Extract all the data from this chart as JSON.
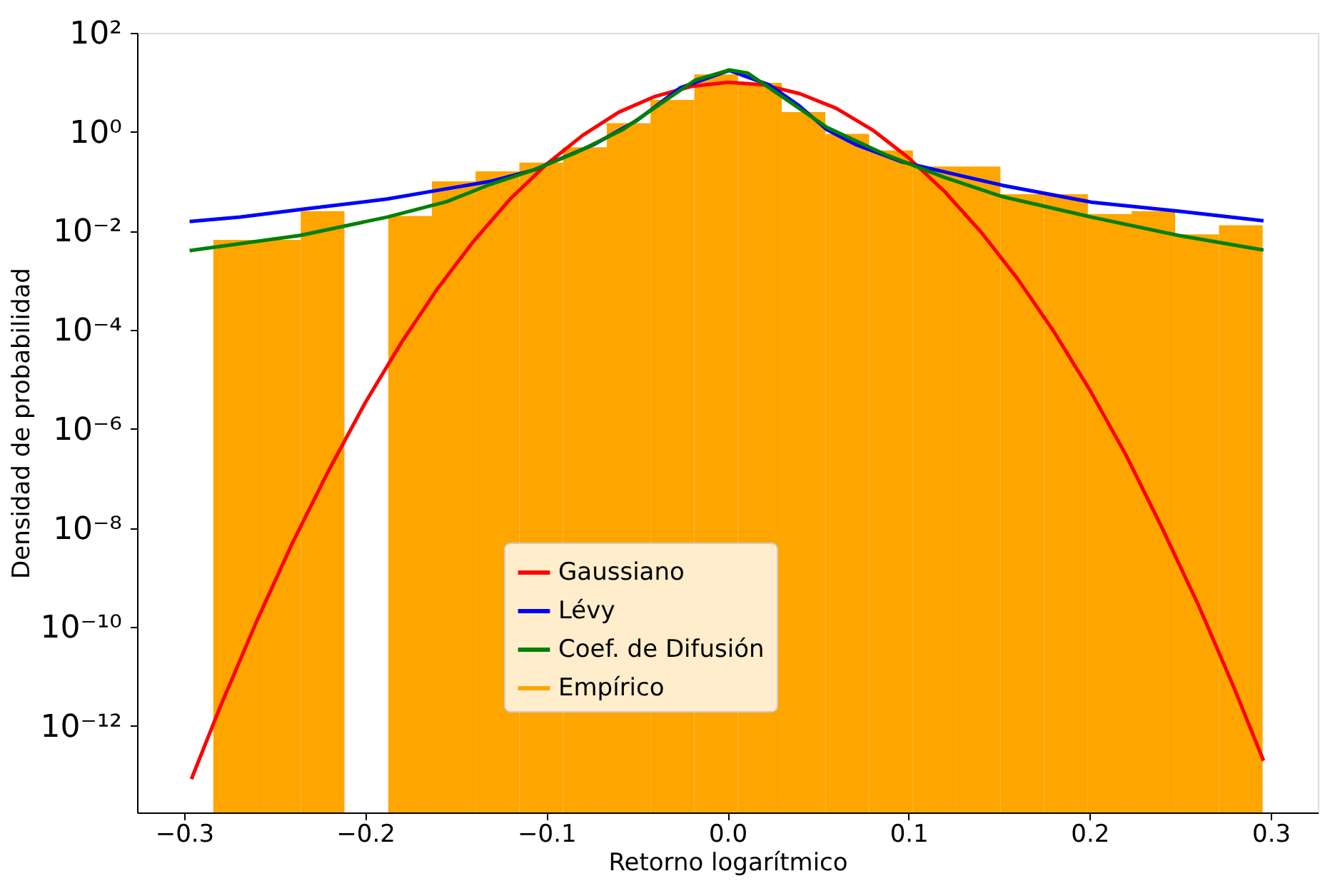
{
  "chart_data": {
    "type": "histogram",
    "xlabel": "Retorno logarítmico",
    "ylabel": "Densidad de probabilidad",
    "xlim": [
      -0.326,
      0.326
    ],
    "ylim": [
      1.8e-14,
      100
    ],
    "log": "y",
    "grid": false,
    "legend": "bottom",
    "xticks": [
      {
        "value": -0.3,
        "label": "−0.3"
      },
      {
        "value": -0.2,
        "label": "−0.2"
      },
      {
        "value": -0.1,
        "label": "−0.1"
      },
      {
        "value": 0,
        "label": "0.0"
      },
      {
        "value": 0.1,
        "label": "0.1"
      },
      {
        "value": 0.2,
        "label": "0.2"
      },
      {
        "value": 0.3,
        "label": "0.3"
      }
    ],
    "yticks": [
      {
        "value": 1e-12,
        "label": "10⁻¹²"
      },
      {
        "value": 1e-10,
        "label": "10⁻¹⁰"
      },
      {
        "value": 1e-08,
        "label": "10⁻⁸"
      },
      {
        "value": 1e-06,
        "label": "10⁻⁶"
      },
      {
        "value": 0.0001,
        "label": "10⁻⁴"
      },
      {
        "value": 0.01,
        "label": "10⁻²"
      },
      {
        "value": 1,
        "label": "10⁰"
      },
      {
        "value": 100,
        "label": "10²"
      }
    ],
    "series": [
      {
        "name": "Gaussiano",
        "type": "line",
        "color": "#ff0000",
        "x": [
          -0.296,
          -0.28,
          -0.26,
          -0.24,
          -0.22,
          -0.2,
          -0.18,
          -0.16,
          -0.14,
          -0.12,
          -0.1,
          -0.08,
          -0.06,
          -0.04,
          -0.02,
          0.0,
          0.02,
          0.04,
          0.06,
          0.08,
          0.1,
          0.12,
          0.14,
          0.16,
          0.18,
          0.2,
          0.22,
          0.24,
          0.26,
          0.28,
          0.296
        ],
        "values": [
          8.5e-14,
          2.5e-12,
          1.3e-10,
          5.2e-09,
          1.5e-07,
          3.4e-06,
          5.6e-05,
          0.00069,
          0.0063,
          0.044,
          0.22,
          0.85,
          2.5,
          5.2,
          8.3,
          10,
          8.9,
          5.9,
          3.0,
          1.1,
          0.3,
          0.062,
          0.0095,
          0.0011,
          9.5e-05,
          6.2e-06,
          3e-07,
          1e-08,
          2.8e-10,
          5.6e-12,
          2e-13
        ]
      },
      {
        "name": "Lévy",
        "type": "line",
        "color": "#0000ff",
        "x": [
          -0.297,
          -0.269,
          -0.236,
          -0.188,
          -0.155,
          -0.131,
          -0.107,
          -0.074,
          -0.05,
          -0.026,
          0.001,
          0.023,
          0.039,
          0.055,
          0.071,
          0.096,
          0.12,
          0.152,
          0.201,
          0.249,
          0.296
        ],
        "values": [
          0.0155,
          0.019,
          0.027,
          0.044,
          0.071,
          0.1,
          0.17,
          0.55,
          1.7,
          7.8,
          17.4,
          8.9,
          3.5,
          1.1,
          0.55,
          0.25,
          0.155,
          0.083,
          0.038,
          0.025,
          0.016
        ]
      },
      {
        "name": "Coef. de Difusión",
        "type": "line",
        "color": "#008000",
        "x": [
          -0.297,
          -0.236,
          -0.188,
          -0.155,
          -0.131,
          -0.107,
          -0.083,
          -0.058,
          -0.034,
          -0.018,
          0.001,
          0.011,
          0.023,
          0.039,
          0.055,
          0.087,
          0.12,
          0.152,
          0.201,
          0.249,
          0.296
        ],
        "values": [
          0.004,
          0.0081,
          0.019,
          0.039,
          0.087,
          0.17,
          0.39,
          1.1,
          4.4,
          11,
          17.8,
          15.5,
          7.8,
          3.1,
          1.23,
          0.35,
          0.12,
          0.049,
          0.019,
          0.0081,
          0.0041
        ]
      },
      {
        "name": "Empírico",
        "color": "#ffa500",
        "bins": [
          -0.2839,
          -0.2598,
          -0.2356,
          -0.2115,
          -0.1873,
          -0.1632,
          -0.1391,
          -0.1149,
          -0.0908,
          -0.0666,
          -0.0425,
          -0.0183,
          0.0058,
          0.03,
          0.0541,
          0.0782,
          0.1024,
          0.1265,
          0.1507,
          0.1748,
          0.199,
          0.2231,
          0.2472,
          0.2714,
          0.2955
        ],
        "values": [
          0.0066,
          0.0066,
          0.025,
          null,
          0.02,
          0.1,
          0.16,
          0.24,
          0.49,
          1.5,
          4.4,
          14.5,
          9.8,
          2.5,
          0.91,
          0.42,
          0.2,
          0.2,
          0.055,
          0.055,
          0.022,
          0.025,
          0.0085,
          0.013
        ]
      }
    ]
  }
}
